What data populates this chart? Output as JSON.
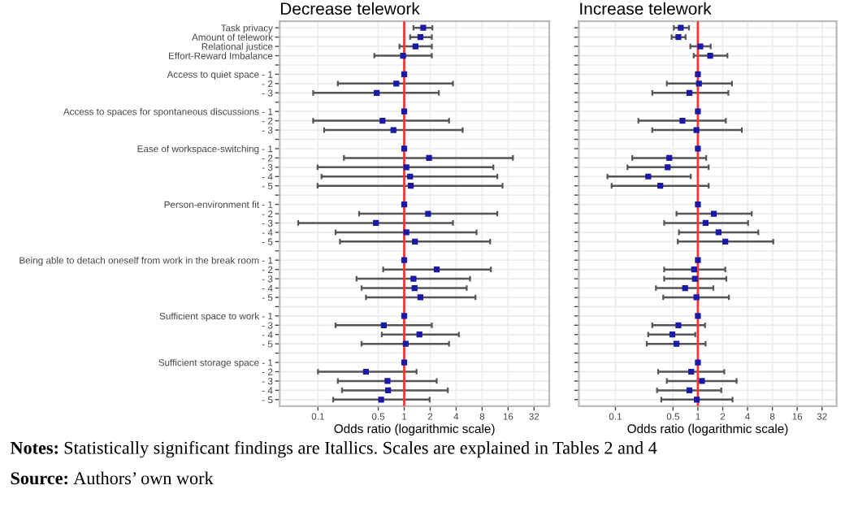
{
  "chart_data": [
    {
      "type": "scatter",
      "orientation": "horizontal",
      "title": "Decrease telework",
      "xlabel": "Odds ratio (logarithmic scale)",
      "categories": [
        "Task privacy",
        "Amount of telework",
        "Relational justice",
        "Effort-Reward Imbalance",
        null,
        "Access to quiet space - 1",
        "- 2",
        "- 3",
        null,
        "Access to spaces for spontaneous discussions - 1",
        "- 2",
        "- 3",
        null,
        "Ease of workspace-switching - 1",
        "- 2",
        "- 3",
        "- 4",
        "- 5",
        null,
        "Person-environment fit - 1",
        "- 2",
        "- 3",
        "- 4",
        "- 5",
        null,
        "Being able to detach oneself from work in the break room - 1",
        "- 2",
        "- 3",
        "- 4",
        "- 5",
        null,
        "Sufficient space to work - 1",
        "- 3",
        "- 4",
        "- 5",
        null,
        "Sufficient storage space - 1",
        "- 2",
        "- 3",
        "- 4",
        "- 5"
      ],
      "series": [
        {
          "color": "#1a1aa6",
          "values": [
            1.66,
            1.54,
            1.35,
            0.97,
            null,
            1,
            0.81,
            0.48,
            null,
            1,
            0.56,
            0.75,
            null,
            1,
            1.94,
            1.06,
            1.17,
            1.19,
            null,
            1,
            1.89,
            0.47,
            1.06,
            1.33,
            null,
            1,
            2.38,
            1.28,
            1.32,
            1.54,
            null,
            1,
            0.58,
            1.5,
            1.04,
            null,
            1,
            0.36,
            0.64,
            0.65,
            0.54
          ],
          "errors": [
            [
              1.28,
              2.12
            ],
            [
              1.17,
              2.09
            ],
            [
              0.88,
              2.09
            ],
            [
              0.45,
              2.09
            ],
            null,
            null,
            [
              0.17,
              3.67
            ],
            [
              0.088,
              2.52
            ],
            null,
            null,
            [
              0.088,
              3.31
            ],
            [
              0.118,
              4.76
            ],
            null,
            null,
            [
              0.2,
              18.2
            ],
            [
              0.099,
              10.8
            ],
            [
              0.11,
              12.0
            ],
            [
              0.099,
              13.8
            ],
            null,
            null,
            [
              0.3,
              12.0
            ],
            [
              0.059,
              3.67
            ],
            [
              0.16,
              6.9
            ],
            [
              0.18,
              9.9
            ],
            null,
            null,
            [
              0.57,
              10.1
            ],
            [
              0.28,
              5.8
            ],
            [
              0.32,
              5.3
            ],
            [
              0.36,
              6.7
            ],
            null,
            null,
            [
              0.16,
              2.09
            ],
            [
              0.55,
              4.3
            ],
            [
              0.32,
              3.31
            ],
            null,
            null,
            [
              0.1,
              1.39
            ],
            [
              0.17,
              2.38
            ],
            [
              0.19,
              3.2
            ],
            [
              0.15,
              1.97
            ]
          ]
        }
      ],
      "log": "x",
      "xlim": [
        0.036,
        48
      ],
      "xticks": [
        0.1,
        0.5,
        1,
        2,
        4,
        8,
        16,
        32
      ],
      "grid": true,
      "marker": "square",
      "ref_lines": [
        {
          "axis": "x",
          "value": 1,
          "color": "#ff3030"
        }
      ],
      "annotations": [
        "Notes: Statistically significant findings are Itallics. Scales are explained in Tables 2 and 4",
        "Source: Authors’ own work"
      ]
    },
    {
      "type": "scatter",
      "orientation": "horizontal",
      "title": "Increase telework",
      "xlabel": "Odds ratio (logarithmic scale)",
      "categories": [
        null,
        null,
        null,
        null,
        null,
        null,
        null,
        null,
        null,
        null,
        null,
        null,
        null,
        null,
        null,
        null,
        null,
        null,
        null,
        null,
        null,
        null,
        null,
        null,
        null,
        null,
        null,
        null,
        null,
        null,
        null,
        null,
        null,
        null,
        null,
        null,
        null,
        null,
        null,
        null,
        null
      ],
      "series": [
        {
          "color": "#1a1aa6",
          "values": [
            0.62,
            0.58,
            1.07,
            1.41,
            null,
            1,
            1.03,
            0.79,
            null,
            1,
            0.65,
            0.96,
            null,
            1,
            0.45,
            0.43,
            0.25,
            0.35,
            null,
            1,
            1.56,
            1.24,
            1.78,
            2.15,
            null,
            1,
            0.9,
            0.92,
            0.7,
            0.96,
            null,
            1,
            0.58,
            0.49,
            0.55,
            null,
            1,
            0.83,
            1.12,
            0.79,
            0.97
          ],
          "errors": [
            [
              0.51,
              0.78
            ],
            [
              0.48,
              0.71
            ],
            [
              0.81,
              1.43
            ],
            [
              0.89,
              2.28
            ],
            null,
            null,
            [
              0.42,
              2.59
            ],
            [
              0.28,
              2.34
            ],
            null,
            null,
            [
              0.19,
              2.18
            ],
            [
              0.28,
              3.41
            ],
            null,
            null,
            [
              0.16,
              1.26
            ],
            [
              0.14,
              1.35
            ],
            [
              0.08,
              0.82
            ],
            [
              0.09,
              1.35
            ],
            null,
            null,
            [
              0.55,
              4.5
            ],
            [
              0.39,
              4.06
            ],
            [
              0.59,
              5.4
            ],
            [
              0.57,
              8.2
            ],
            null,
            null,
            [
              0.39,
              2.15
            ],
            [
              0.39,
              2.21
            ],
            [
              0.31,
              1.54
            ],
            [
              0.38,
              2.38
            ],
            null,
            null,
            [
              0.28,
              1.22
            ],
            [
              0.25,
              0.93
            ],
            [
              0.24,
              1.24
            ],
            null,
            null,
            [
              0.33,
              2.09
            ],
            [
              0.42,
              2.95
            ],
            [
              0.32,
              1.92
            ],
            [
              0.36,
              2.63
            ]
          ]
        }
      ],
      "log": "x",
      "xlim": [
        0.036,
        48
      ],
      "xticks": [
        0.1,
        0.5,
        1,
        2,
        4,
        8,
        16,
        32
      ],
      "grid": true,
      "marker": "square",
      "tick_labels": "x",
      "ref_lines": [
        {
          "axis": "x",
          "value": 1,
          "color": "#ff3030"
        }
      ]
    }
  ]
}
